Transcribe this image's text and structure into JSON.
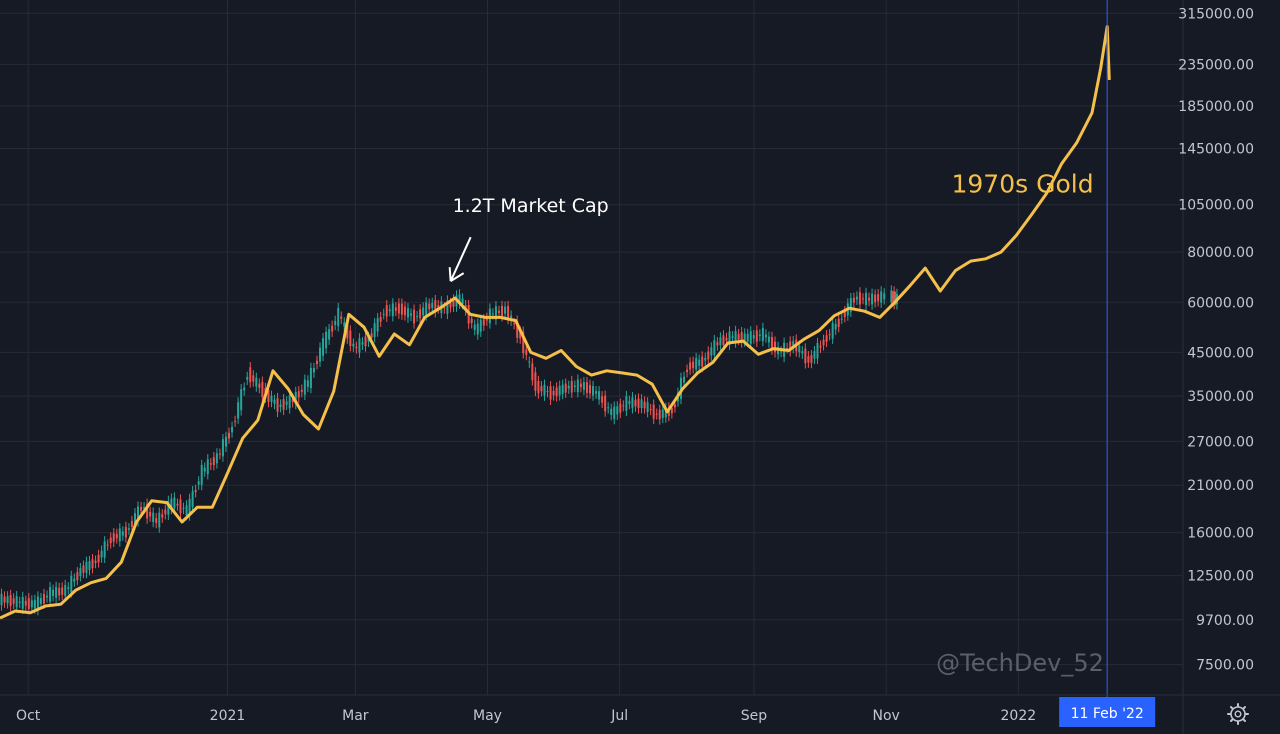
{
  "chart_data": {
    "type": "line",
    "title": "",
    "xlabel": "",
    "ylabel": "",
    "y_scale": "log",
    "ylim": [
      6300,
      340000
    ],
    "xlim": [
      "2020-09-18",
      "2022-03-18"
    ],
    "grid": true,
    "x_ticks": [
      {
        "label": "Oct",
        "date": "2020-10-01"
      },
      {
        "label": "2021",
        "date": "2021-01-01"
      },
      {
        "label": "Mar",
        "date": "2021-03-01"
      },
      {
        "label": "May",
        "date": "2021-05-01"
      },
      {
        "label": "Jul",
        "date": "2021-07-01"
      },
      {
        "label": "Sep",
        "date": "2021-09-01"
      },
      {
        "label": "Nov",
        "date": "2021-11-01"
      },
      {
        "label": "2022",
        "date": "2022-01-01"
      }
    ],
    "y_ticks": [
      {
        "label": "315000.00",
        "value": 315000
      },
      {
        "label": "235000.00",
        "value": 235000
      },
      {
        "label": "185000.00",
        "value": 185000
      },
      {
        "label": "145000.00",
        "value": 145000
      },
      {
        "label": "105000.00",
        "value": 105000
      },
      {
        "label": "80000.00",
        "value": 80000
      },
      {
        "label": "60000.00",
        "value": 60000
      },
      {
        "label": "45000.00",
        "value": 45000
      },
      {
        "label": "35000.00",
        "value": 35000
      },
      {
        "label": "27000.00",
        "value": 27000
      },
      {
        "label": "21000.00",
        "value": 21000
      },
      {
        "label": "16000.00",
        "value": 16000
      },
      {
        "label": "12500.00",
        "value": 12500
      },
      {
        "label": "9700.00",
        "value": 9700
      },
      {
        "label": "7500.00",
        "value": 7500
      }
    ],
    "crosshair": {
      "label": "11 Feb '22",
      "date": "2022-02-11",
      "color": "#2962ff"
    },
    "series": [
      {
        "type": "candlestick",
        "up_color": "#26a69a",
        "down_color": "#ef5350",
        "points": [
          {
            "date": "2020-09-18",
            "value": 10900
          },
          {
            "date": "2020-09-25",
            "value": 10700
          },
          {
            "date": "2020-10-02",
            "value": 10600
          },
          {
            "date": "2020-10-09",
            "value": 11300
          },
          {
            "date": "2020-10-16",
            "value": 11500
          },
          {
            "date": "2020-10-23",
            "value": 12900
          },
          {
            "date": "2020-10-30",
            "value": 13600
          },
          {
            "date": "2020-11-06",
            "value": 15500
          },
          {
            "date": "2020-11-13",
            "value": 16100
          },
          {
            "date": "2020-11-20",
            "value": 18600
          },
          {
            "date": "2020-11-27",
            "value": 17000
          },
          {
            "date": "2020-12-04",
            "value": 19100
          },
          {
            "date": "2020-12-11",
            "value": 18100
          },
          {
            "date": "2020-12-18",
            "value": 22800
          },
          {
            "date": "2020-12-25",
            "value": 24700
          },
          {
            "date": "2021-01-01",
            "value": 29400
          },
          {
            "date": "2021-01-08",
            "value": 40000
          },
          {
            "date": "2021-01-15",
            "value": 36000
          },
          {
            "date": "2021-01-22",
            "value": 33000
          },
          {
            "date": "2021-01-29",
            "value": 34300
          },
          {
            "date": "2021-02-05",
            "value": 38000
          },
          {
            "date": "2021-02-12",
            "value": 47500
          },
          {
            "date": "2021-02-19",
            "value": 56000
          },
          {
            "date": "2021-02-26",
            "value": 46000
          },
          {
            "date": "2021-03-05",
            "value": 48800
          },
          {
            "date": "2021-03-12",
            "value": 57000
          },
          {
            "date": "2021-03-19",
            "value": 58000
          },
          {
            "date": "2021-03-26",
            "value": 55000
          },
          {
            "date": "2021-04-02",
            "value": 59000
          },
          {
            "date": "2021-04-09",
            "value": 58000
          },
          {
            "date": "2021-04-16",
            "value": 61500
          },
          {
            "date": "2021-04-23",
            "value": 51000
          },
          {
            "date": "2021-04-30",
            "value": 56000
          },
          {
            "date": "2021-05-07",
            "value": 57500
          },
          {
            "date": "2021-05-14",
            "value": 49000
          },
          {
            "date": "2021-05-21",
            "value": 37000
          },
          {
            "date": "2021-05-28",
            "value": 35500
          },
          {
            "date": "2021-06-04",
            "value": 36800
          },
          {
            "date": "2021-06-11",
            "value": 37300
          },
          {
            "date": "2021-06-18",
            "value": 35600
          },
          {
            "date": "2021-06-25",
            "value": 31600
          },
          {
            "date": "2021-07-02",
            "value": 33800
          },
          {
            "date": "2021-07-09",
            "value": 33500
          },
          {
            "date": "2021-07-16",
            "value": 31400
          },
          {
            "date": "2021-07-23",
            "value": 32300
          },
          {
            "date": "2021-07-30",
            "value": 41500
          },
          {
            "date": "2021-08-06",
            "value": 42800
          },
          {
            "date": "2021-08-13",
            "value": 47800
          },
          {
            "date": "2021-08-20",
            "value": 49300
          },
          {
            "date": "2021-08-27",
            "value": 48900
          },
          {
            "date": "2021-09-03",
            "value": 50000
          },
          {
            "date": "2021-09-10",
            "value": 45000
          },
          {
            "date": "2021-09-17",
            "value": 47300
          },
          {
            "date": "2021-09-24",
            "value": 42800
          },
          {
            "date": "2021-10-01",
            "value": 48200
          },
          {
            "date": "2021-10-08",
            "value": 53900
          },
          {
            "date": "2021-10-15",
            "value": 61500
          },
          {
            "date": "2021-10-22",
            "value": 61000
          },
          {
            "date": "2021-10-29",
            "value": 62200
          },
          {
            "date": "2021-11-05",
            "value": 61000
          }
        ]
      },
      {
        "name": "1970s Gold",
        "type": "line",
        "color": "#f5c04a",
        "points": [
          {
            "date": "2020-09-18",
            "value": 9800
          },
          {
            "date": "2020-09-25",
            "value": 10200
          },
          {
            "date": "2020-10-02",
            "value": 10100
          },
          {
            "date": "2020-10-09",
            "value": 10500
          },
          {
            "date": "2020-10-16",
            "value": 10600
          },
          {
            "date": "2020-10-23",
            "value": 11500
          },
          {
            "date": "2020-10-30",
            "value": 12000
          },
          {
            "date": "2020-11-06",
            "value": 12300
          },
          {
            "date": "2020-11-13",
            "value": 13500
          },
          {
            "date": "2020-11-20",
            "value": 17000
          },
          {
            "date": "2020-11-27",
            "value": 19200
          },
          {
            "date": "2020-12-04",
            "value": 19000
          },
          {
            "date": "2020-12-11",
            "value": 17000
          },
          {
            "date": "2020-12-18",
            "value": 18500
          },
          {
            "date": "2020-12-25",
            "value": 18500
          },
          {
            "date": "2021-01-01",
            "value": 22500
          },
          {
            "date": "2021-01-08",
            "value": 27500
          },
          {
            "date": "2021-01-15",
            "value": 30500
          },
          {
            "date": "2021-01-22",
            "value": 40500
          },
          {
            "date": "2021-01-29",
            "value": 36500
          },
          {
            "date": "2021-02-05",
            "value": 31500
          },
          {
            "date": "2021-02-12",
            "value": 29000
          },
          {
            "date": "2021-02-19",
            "value": 36000
          },
          {
            "date": "2021-02-26",
            "value": 56000
          },
          {
            "date": "2021-03-05",
            "value": 52000
          },
          {
            "date": "2021-03-12",
            "value": 44000
          },
          {
            "date": "2021-03-19",
            "value": 50000
          },
          {
            "date": "2021-03-26",
            "value": 47000
          },
          {
            "date": "2021-04-02",
            "value": 55000
          },
          {
            "date": "2021-04-09",
            "value": 58000
          },
          {
            "date": "2021-04-16",
            "value": 61500
          },
          {
            "date": "2021-04-23",
            "value": 56000
          },
          {
            "date": "2021-04-30",
            "value": 55000
          },
          {
            "date": "2021-05-07",
            "value": 55000
          },
          {
            "date": "2021-05-14",
            "value": 54000
          },
          {
            "date": "2021-05-21",
            "value": 45000
          },
          {
            "date": "2021-05-28",
            "value": 43500
          },
          {
            "date": "2021-06-04",
            "value": 45500
          },
          {
            "date": "2021-06-11",
            "value": 41500
          },
          {
            "date": "2021-06-18",
            "value": 39500
          },
          {
            "date": "2021-06-25",
            "value": 40500
          },
          {
            "date": "2021-07-02",
            "value": 40000
          },
          {
            "date": "2021-07-09",
            "value": 39500
          },
          {
            "date": "2021-07-16",
            "value": 37500
          },
          {
            "date": "2021-07-23",
            "value": 32000
          },
          {
            "date": "2021-07-30",
            "value": 36500
          },
          {
            "date": "2021-08-06",
            "value": 40000
          },
          {
            "date": "2021-08-13",
            "value": 42500
          },
          {
            "date": "2021-08-20",
            "value": 47500
          },
          {
            "date": "2021-08-27",
            "value": 48000
          },
          {
            "date": "2021-09-03",
            "value": 44500
          },
          {
            "date": "2021-09-10",
            "value": 46000
          },
          {
            "date": "2021-09-17",
            "value": 45500
          },
          {
            "date": "2021-09-24",
            "value": 48500
          },
          {
            "date": "2021-10-01",
            "value": 51000
          },
          {
            "date": "2021-10-08",
            "value": 55500
          },
          {
            "date": "2021-10-15",
            "value": 58000
          },
          {
            "date": "2021-10-22",
            "value": 57000
          },
          {
            "date": "2021-10-29",
            "value": 55000
          },
          {
            "date": "2021-11-05",
            "value": 60000
          },
          {
            "date": "2021-11-12",
            "value": 66000
          },
          {
            "date": "2021-11-19",
            "value": 73000
          },
          {
            "date": "2021-11-26",
            "value": 64000
          },
          {
            "date": "2021-12-03",
            "value": 72000
          },
          {
            "date": "2021-12-10",
            "value": 76000
          },
          {
            "date": "2021-12-17",
            "value": 77000
          },
          {
            "date": "2021-12-24",
            "value": 80000
          },
          {
            "date": "2021-12-31",
            "value": 88000
          },
          {
            "date": "2022-01-07",
            "value": 99000
          },
          {
            "date": "2022-01-14",
            "value": 112000
          },
          {
            "date": "2022-01-21",
            "value": 133000
          },
          {
            "date": "2022-01-28",
            "value": 150000
          },
          {
            "date": "2022-02-04",
            "value": 178000
          },
          {
            "date": "2022-02-08",
            "value": 230000
          },
          {
            "date": "2022-02-11",
            "value": 292000
          },
          {
            "date": "2022-02-12",
            "value": 215000
          }
        ]
      }
    ],
    "annotations": [
      {
        "text": "1.2T Market Cap",
        "date": "2021-04-14",
        "value": 62500,
        "kind": "arrow",
        "color": "#ffffff"
      },
      {
        "text": "1970s Gold",
        "date": "2021-12-15",
        "value": 118000,
        "kind": "label",
        "color": "#f5c04a"
      }
    ],
    "watermark": "@TechDev_52",
    "background": "#161a25"
  }
}
